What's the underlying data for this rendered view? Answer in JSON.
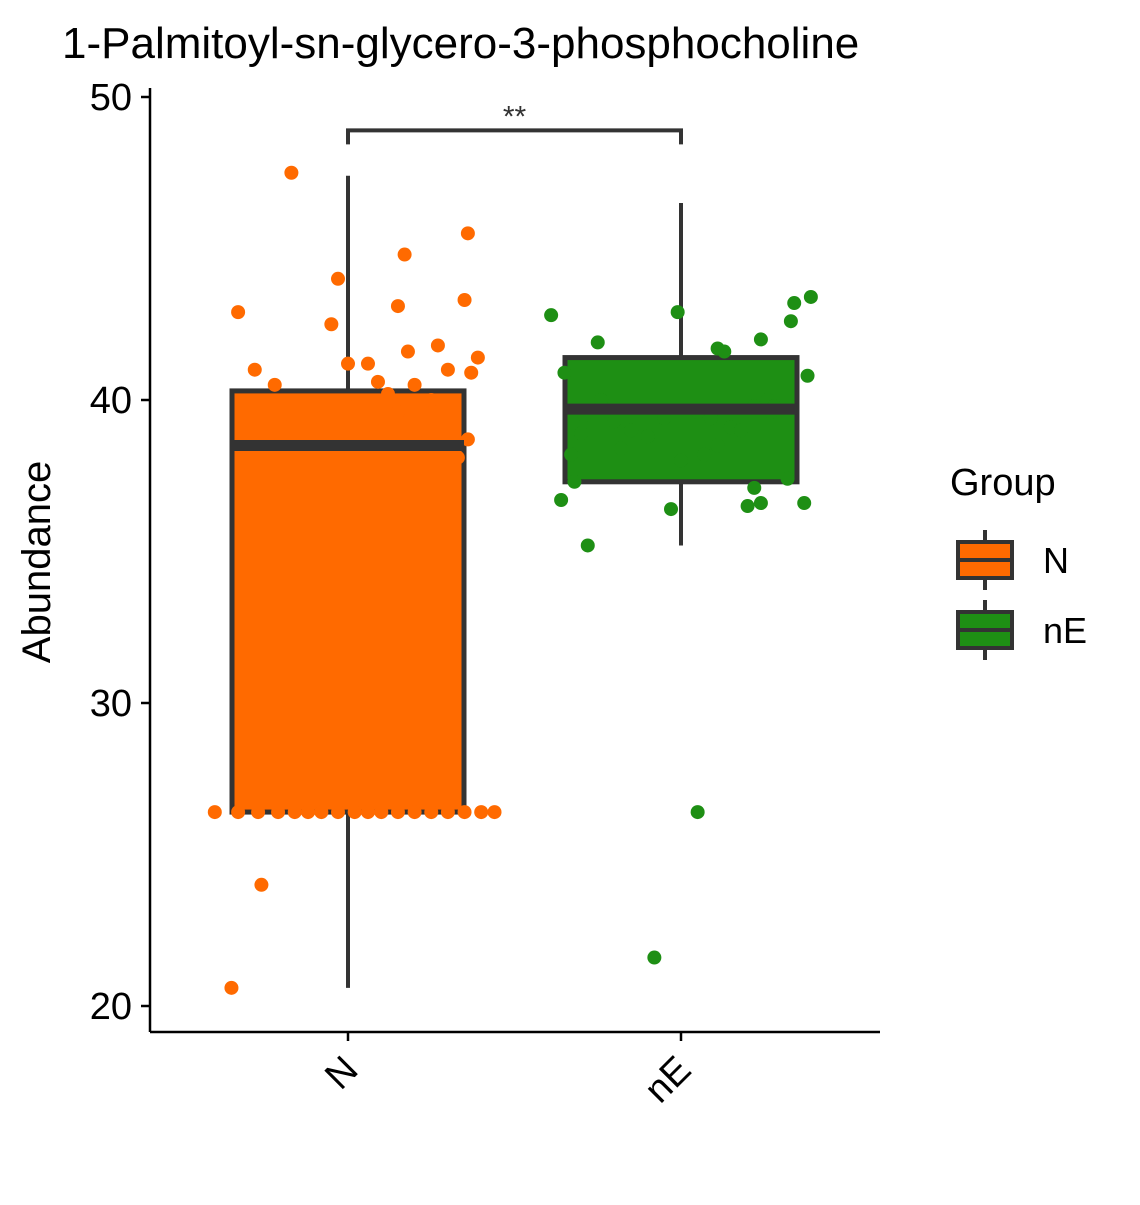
{
  "chart_data": {
    "type": "box",
    "title": "1-Palmitoyl-sn-glycero-3-phosphocholine",
    "xlabel": "",
    "ylabel": "Abundance",
    "categories": [
      "N",
      "nE"
    ],
    "ylim": [
      19.2,
      51.0
    ],
    "yticks": [
      20,
      30,
      40,
      50
    ],
    "ytick_labels": [
      "20",
      "30",
      "40",
      "50"
    ],
    "legend": {
      "title": "Group",
      "position": "right",
      "entries": [
        {
          "label": "N",
          "color": "#FF6A00"
        },
        {
          "label": "nE",
          "color": "#1E8F14"
        }
      ]
    },
    "significance": {
      "between": [
        "N",
        "nE"
      ],
      "label": "**",
      "y": 48.9
    },
    "series": [
      {
        "group": "N",
        "color": "#FF6A00",
        "box": {
          "whisker_low": 20.6,
          "q1": 26.4,
          "median": 38.5,
          "q3": 40.3,
          "whisker_high": 47.4
        },
        "points": [
          [
            -0.4,
            26.4
          ],
          [
            -0.33,
            26.4
          ],
          [
            -0.27,
            26.4
          ],
          [
            -0.21,
            26.4
          ],
          [
            -0.16,
            26.4
          ],
          [
            -0.12,
            26.4
          ],
          [
            -0.08,
            26.4
          ],
          [
            -0.03,
            26.4
          ],
          [
            0.02,
            26.4
          ],
          [
            0.06,
            26.4
          ],
          [
            0.1,
            26.4
          ],
          [
            0.15,
            26.4
          ],
          [
            0.2,
            26.4
          ],
          [
            0.25,
            26.4
          ],
          [
            0.3,
            26.4
          ],
          [
            0.35,
            26.4
          ],
          [
            0.4,
            26.4
          ],
          [
            0.44,
            26.4
          ],
          [
            -0.35,
            20.6
          ],
          [
            -0.26,
            24.0
          ],
          [
            -0.33,
            42.9
          ],
          [
            -0.28,
            41.0
          ],
          [
            -0.22,
            40.5
          ],
          [
            -0.17,
            47.5
          ],
          [
            -0.05,
            42.5
          ],
          [
            -0.03,
            44.0
          ],
          [
            0.0,
            41.2
          ],
          [
            0.06,
            41.2
          ],
          [
            0.09,
            40.6
          ],
          [
            0.12,
            40.2
          ],
          [
            0.15,
            43.1
          ],
          [
            0.17,
            44.8
          ],
          [
            0.18,
            41.6
          ],
          [
            0.2,
            40.5
          ],
          [
            0.27,
            41.8
          ],
          [
            0.3,
            41.0
          ],
          [
            0.35,
            43.3
          ],
          [
            0.36,
            45.5
          ],
          [
            0.37,
            40.9
          ],
          [
            0.39,
            41.4
          ],
          [
            0.36,
            38.7
          ],
          [
            0.33,
            38.1
          ],
          [
            0.28,
            38.6
          ],
          [
            0.2,
            38.5
          ],
          [
            0.08,
            38.8
          ],
          [
            -0.03,
            38.2
          ],
          [
            -0.11,
            38.6
          ],
          [
            -0.16,
            38.6
          ],
          [
            -0.21,
            38.5
          ],
          [
            0.25,
            40.0
          ],
          [
            0.03,
            39.9
          ],
          [
            -0.08,
            39.4
          ],
          [
            0.15,
            39.6
          ],
          [
            -0.18,
            39.1
          ],
          [
            0.11,
            39.3
          ],
          [
            0.23,
            39.0
          ]
        ]
      },
      {
        "group": "nE",
        "color": "#1E8F14",
        "box": {
          "whisker_low": 35.2,
          "q1": 37.3,
          "median": 39.7,
          "q3": 41.4,
          "whisker_high": 46.5
        },
        "points": [
          [
            -0.39,
            42.8
          ],
          [
            -0.36,
            36.7
          ],
          [
            -0.35,
            40.9
          ],
          [
            -0.33,
            38.2
          ],
          [
            -0.32,
            37.3
          ],
          [
            -0.3,
            38.9
          ],
          [
            -0.29,
            39.5
          ],
          [
            -0.28,
            35.2
          ],
          [
            -0.25,
            41.9
          ],
          [
            -0.24,
            40.0
          ],
          [
            -0.2,
            39.3
          ],
          [
            -0.15,
            39.0
          ],
          [
            -0.1,
            38.8
          ],
          [
            -0.05,
            39.4
          ],
          [
            -0.03,
            36.4
          ],
          [
            0.0,
            38.0
          ],
          [
            -0.01,
            42.9
          ],
          [
            0.05,
            39.6
          ],
          [
            0.09,
            39.4
          ],
          [
            0.11,
            41.7
          ],
          [
            0.13,
            41.6
          ],
          [
            0.11,
            38.5
          ],
          [
            0.15,
            39.1
          ],
          [
            0.18,
            39.0
          ],
          [
            0.2,
            36.5
          ],
          [
            0.22,
            37.1
          ],
          [
            0.22,
            39.8
          ],
          [
            0.24,
            36.6
          ],
          [
            0.24,
            42.0
          ],
          [
            0.26,
            40.0
          ],
          [
            0.27,
            39.6
          ],
          [
            0.28,
            39.8
          ],
          [
            0.32,
            37.4
          ],
          [
            0.33,
            42.6
          ],
          [
            0.34,
            43.2
          ],
          [
            0.37,
            36.6
          ],
          [
            0.38,
            40.8
          ],
          [
            0.39,
            43.4
          ],
          [
            0.05,
            26.4
          ],
          [
            -0.08,
            21.6
          ],
          [
            -0.18,
            38.4
          ],
          [
            0.07,
            38.2
          ]
        ]
      }
    ]
  }
}
